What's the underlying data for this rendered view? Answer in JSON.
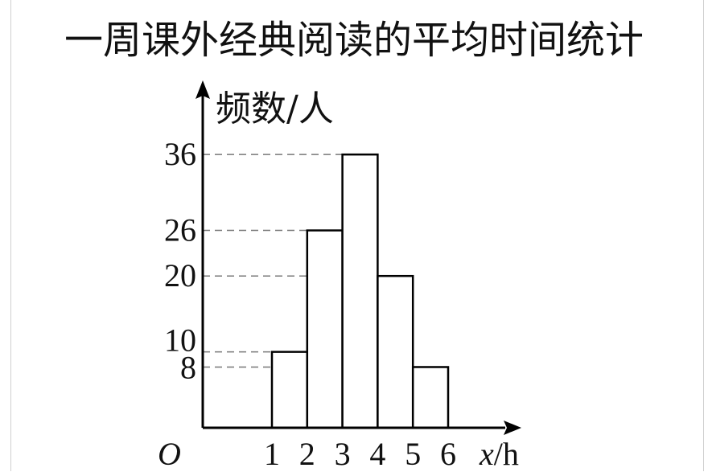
{
  "chart_data": {
    "type": "bar",
    "subtype": "histogram",
    "title": "一周课外经典阅读的平均时间统计",
    "ylabel": "频数/人",
    "xlabel": "x/h",
    "xlabel_var": "x",
    "xlabel_unit": "/h",
    "origin_label": "O",
    "x_ticks": [
      "1",
      "2",
      "3",
      "4",
      "5",
      "6"
    ],
    "y_ticks": [
      "8",
      "10",
      "20",
      "26",
      "36"
    ],
    "bins": [
      {
        "from": 1,
        "to": 2,
        "value": 10
      },
      {
        "from": 2,
        "to": 3,
        "value": 26
      },
      {
        "from": 3,
        "to": 4,
        "value": 36
      },
      {
        "from": 4,
        "to": 5,
        "value": 20
      },
      {
        "from": 5,
        "to": 6,
        "value": 8
      }
    ],
    "grid": "dashed reference lines at bar heights",
    "colors": {
      "bar_fill": "#ffffff",
      "bar_stroke": "#000000",
      "axis": "#000000",
      "dash": "#777777"
    }
  }
}
